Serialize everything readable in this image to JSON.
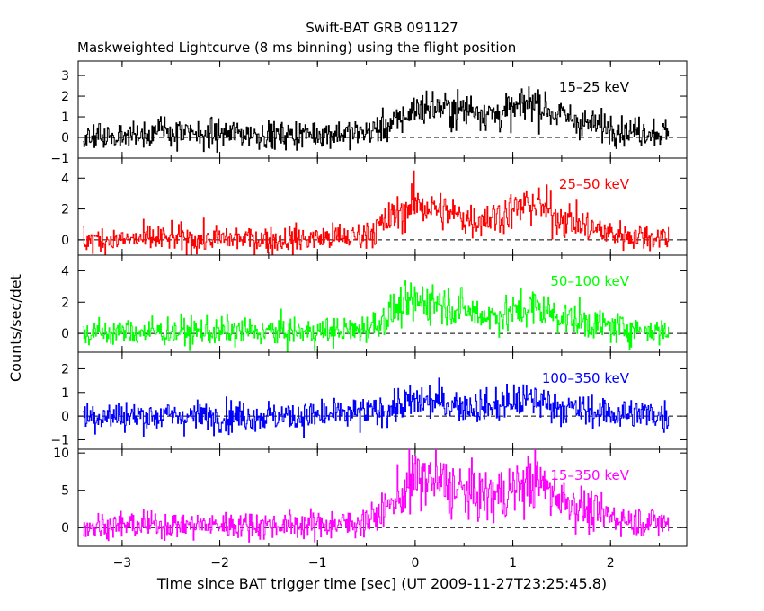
{
  "figure": {
    "title": "Swift-BAT GRB 091127",
    "subtitle": "Maskweighted Lightcurve (8 ms binning) using the flight position",
    "xlabel": "Time since BAT trigger time [sec] (UT 2009-11-27T23:25:45.8)",
    "ylabel": "Counts/sec/det"
  },
  "chart_data": [
    {
      "type": "line",
      "name": "15-25 keV",
      "label": "15–25 keV",
      "color": "#000000",
      "xlim": [
        -3.45,
        2.78
      ],
      "ylim": [
        -1.0,
        3.7
      ],
      "yticks": [
        -1,
        0,
        1,
        2,
        3
      ],
      "x": [
        -3.4,
        -3.0,
        -2.6,
        -2.2,
        -1.8,
        -1.4,
        -1.0,
        -0.6,
        -0.4,
        -0.2,
        0.0,
        0.2,
        0.4,
        0.6,
        0.8,
        1.0,
        1.2,
        1.4,
        1.6,
        1.8,
        2.0,
        2.2,
        2.4,
        2.6
      ],
      "y": [
        0.0,
        0.1,
        0.3,
        0.1,
        0.2,
        0.1,
        0.2,
        0.2,
        0.4,
        0.7,
        1.4,
        1.5,
        1.3,
        1.4,
        1.1,
        1.3,
        1.8,
        1.2,
        0.9,
        0.6,
        0.5,
        0.3,
        0.3,
        0.2
      ]
    },
    {
      "type": "line",
      "name": "25-50 keV",
      "label": "25–50 keV",
      "color": "#ff0000",
      "xlim": [
        -3.45,
        2.78
      ],
      "ylim": [
        -1.0,
        5.3
      ],
      "yticks": [
        0,
        2,
        4
      ],
      "x": [
        -3.4,
        -3.0,
        -2.6,
        -2.2,
        -1.8,
        -1.4,
        -1.0,
        -0.6,
        -0.4,
        -0.2,
        0.0,
        0.2,
        0.4,
        0.6,
        0.8,
        1.0,
        1.2,
        1.4,
        1.6,
        1.8,
        2.0,
        2.2,
        2.4,
        2.6
      ],
      "y": [
        0.0,
        0.0,
        0.1,
        0.0,
        0.1,
        0.0,
        0.1,
        0.2,
        0.7,
        1.6,
        2.4,
        2.0,
        1.6,
        1.3,
        1.5,
        1.9,
        2.4,
        1.7,
        1.2,
        0.7,
        0.4,
        0.3,
        0.2,
        0.2
      ]
    },
    {
      "type": "line",
      "name": "50-100 keV",
      "label": "50–100 keV",
      "color": "#00ff00",
      "xlim": [
        -3.45,
        2.78
      ],
      "ylim": [
        -1.2,
        5.0
      ],
      "yticks": [
        0,
        2,
        4
      ],
      "x": [
        -3.4,
        -3.0,
        -2.6,
        -2.2,
        -1.8,
        -1.4,
        -1.0,
        -0.6,
        -0.4,
        -0.2,
        0.0,
        0.2,
        0.4,
        0.6,
        0.8,
        1.0,
        1.2,
        1.4,
        1.6,
        1.8,
        2.0,
        2.2,
        2.4,
        2.6
      ],
      "y": [
        0.0,
        0.1,
        0.1,
        0.1,
        0.1,
        0.1,
        0.1,
        0.2,
        0.6,
        1.5,
        2.0,
        2.1,
        1.7,
        1.3,
        1.1,
        1.3,
        1.7,
        1.3,
        0.9,
        0.6,
        0.4,
        0.3,
        0.2,
        0.2
      ]
    },
    {
      "type": "line",
      "name": "100-350 keV",
      "label": "100–350 keV",
      "color": "#0000ff",
      "xlim": [
        -3.45,
        2.78
      ],
      "ylim": [
        -1.4,
        2.7
      ],
      "yticks": [
        -1,
        0,
        1,
        2
      ],
      "x": [
        -3.4,
        -3.0,
        -2.6,
        -2.2,
        -1.8,
        -1.4,
        -1.0,
        -0.6,
        -0.4,
        -0.2,
        0.0,
        0.2,
        0.4,
        0.6,
        0.8,
        1.0,
        1.2,
        1.4,
        1.6,
        1.8,
        2.0,
        2.2,
        2.4,
        2.6
      ],
      "y": [
        0.0,
        0.0,
        0.0,
        0.0,
        0.0,
        0.0,
        0.0,
        0.1,
        0.2,
        0.4,
        0.6,
        0.6,
        0.5,
        0.4,
        0.4,
        0.6,
        0.7,
        0.5,
        0.3,
        0.2,
        0.1,
        0.1,
        0.1,
        0.0
      ]
    },
    {
      "type": "line",
      "name": "15-350 keV",
      "label": "15–350 keV",
      "color": "#ff00ff",
      "xlim": [
        -3.45,
        2.78
      ],
      "ylim": [
        -2.5,
        10.5
      ],
      "yticks": [
        0,
        5,
        10
      ],
      "x": [
        -3.4,
        -3.0,
        -2.6,
        -2.2,
        -1.8,
        -1.4,
        -1.0,
        -0.6,
        -0.4,
        -0.2,
        0.0,
        0.2,
        0.4,
        0.6,
        0.8,
        1.0,
        1.2,
        1.4,
        1.6,
        1.8,
        2.0,
        2.2,
        2.4,
        2.6
      ],
      "y": [
        0.2,
        0.3,
        0.4,
        0.3,
        0.4,
        0.3,
        0.4,
        0.6,
        1.5,
        3.8,
        6.5,
        6.3,
        5.2,
        4.5,
        4.2,
        5.0,
        6.4,
        4.8,
        3.3,
        2.1,
        1.5,
        1.0,
        0.8,
        0.6
      ]
    }
  ],
  "xaxis": {
    "ticks": [
      -3,
      -2,
      -1,
      0,
      1,
      2
    ],
    "tick_labels": [
      "−3",
      "−2",
      "−1",
      "0",
      "1",
      "2"
    ]
  }
}
